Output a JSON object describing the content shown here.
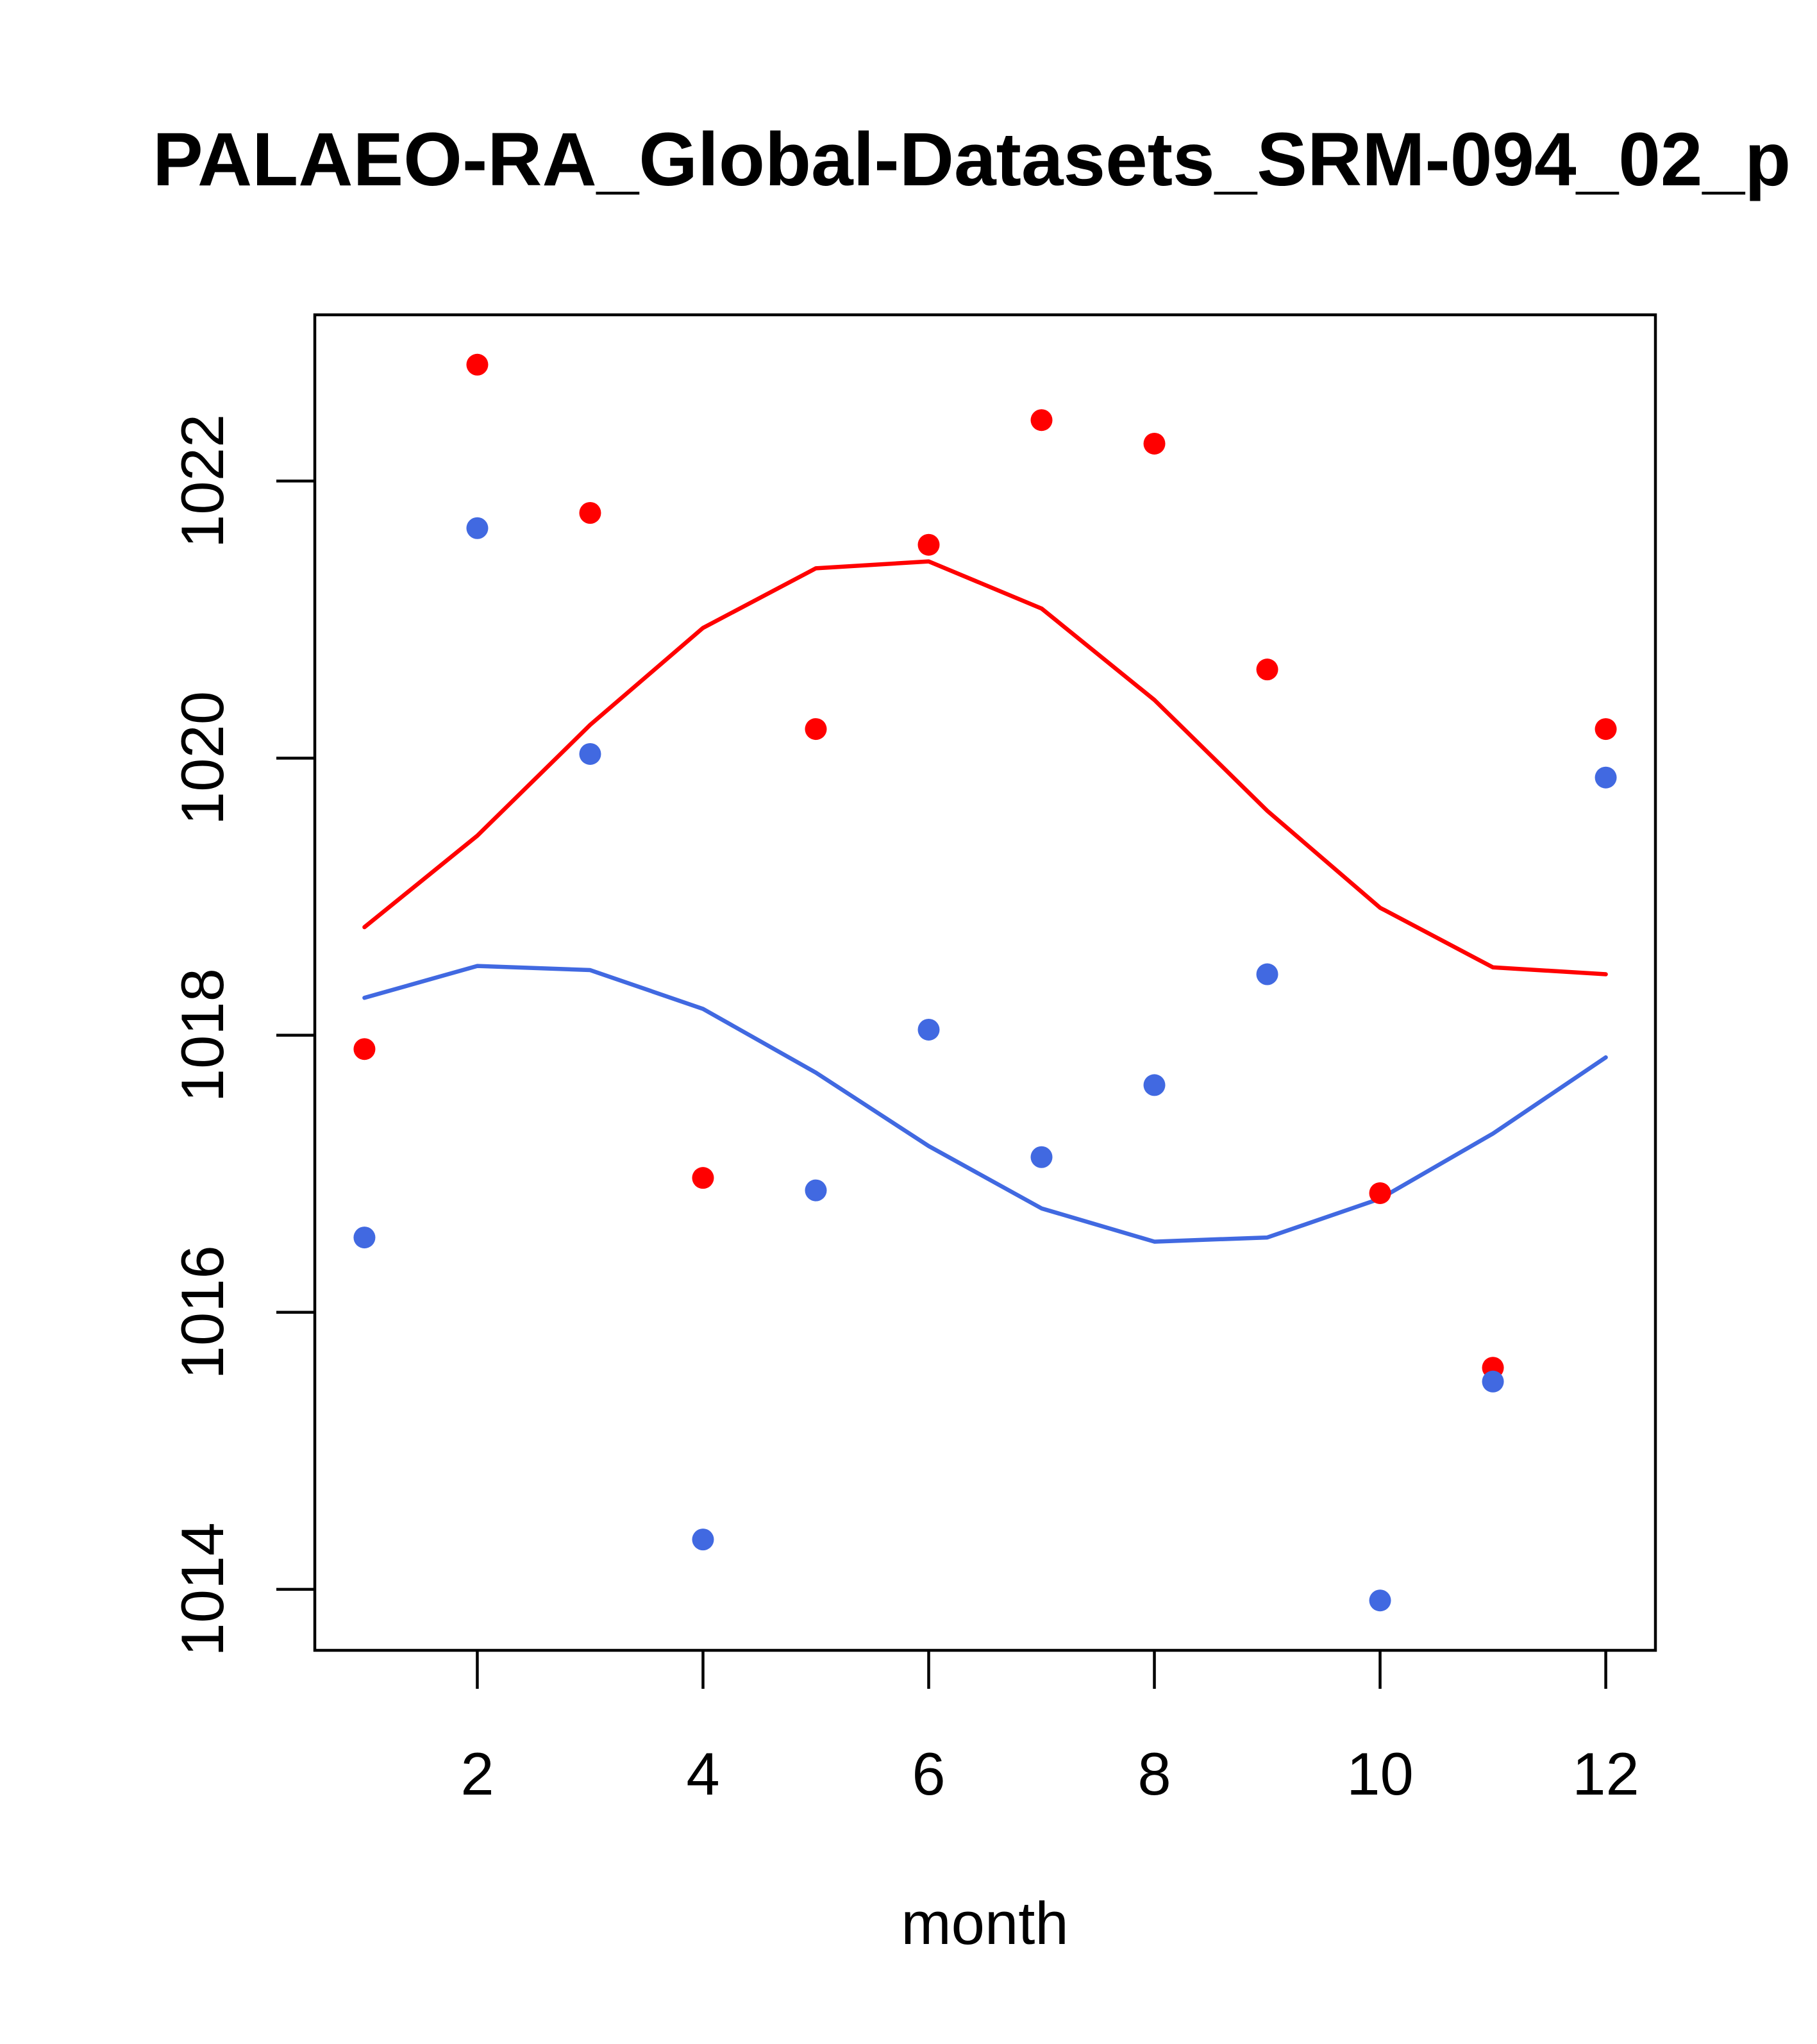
{
  "chart_data": {
    "type": "scatter",
    "title": "PALAEO-RA_Global-Datasets_SRM-094_02_p",
    "xlabel": "month",
    "ylabel": "",
    "xlim": [
      0.56,
      12.44
    ],
    "ylim": [
      1013.56,
      1023.2
    ],
    "x_ticks": [
      2,
      4,
      6,
      8,
      10,
      12
    ],
    "y_ticks": [
      1014,
      1016,
      1018,
      1020,
      1022
    ],
    "x_tick_labels": [
      "2",
      "4",
      "6",
      "8",
      "10",
      "12"
    ],
    "y_tick_labels": [
      "1014",
      "1016",
      "1018",
      "1020",
      "1022"
    ],
    "x": [
      1,
      2,
      3,
      4,
      5,
      6,
      7,
      8,
      9,
      10,
      11,
      12
    ],
    "series": [
      {
        "name": "red points",
        "kind": "points",
        "color": "#ff0000",
        "values": [
          1017.9,
          1022.84,
          1021.77,
          1016.97,
          1020.21,
          1021.54,
          1022.44,
          1022.27,
          1020.64,
          1016.86,
          1015.6,
          1020.21
        ]
      },
      {
        "name": "blue points",
        "kind": "points",
        "color": "#4169e1",
        "values": [
          1016.54,
          1021.66,
          1020.03,
          1014.36,
          1016.88,
          1018.04,
          1017.12,
          1017.64,
          1018.44,
          1013.92,
          1015.5,
          1019.86
        ]
      },
      {
        "name": "red line",
        "kind": "line",
        "color": "#ff0000",
        "values": [
          1018.78,
          1019.44,
          1020.24,
          1020.94,
          1021.37,
          1021.42,
          1021.08,
          1020.42,
          1019.62,
          1018.92,
          1018.49,
          1018.44
        ]
      },
      {
        "name": "blue line",
        "kind": "line",
        "color": "#4169e1",
        "values": [
          1018.27,
          1018.5,
          1018.47,
          1018.19,
          1017.73,
          1017.2,
          1016.75,
          1016.51,
          1016.54,
          1016.82,
          1017.29,
          1017.84
        ]
      }
    ],
    "grid": false,
    "legend": "none"
  }
}
